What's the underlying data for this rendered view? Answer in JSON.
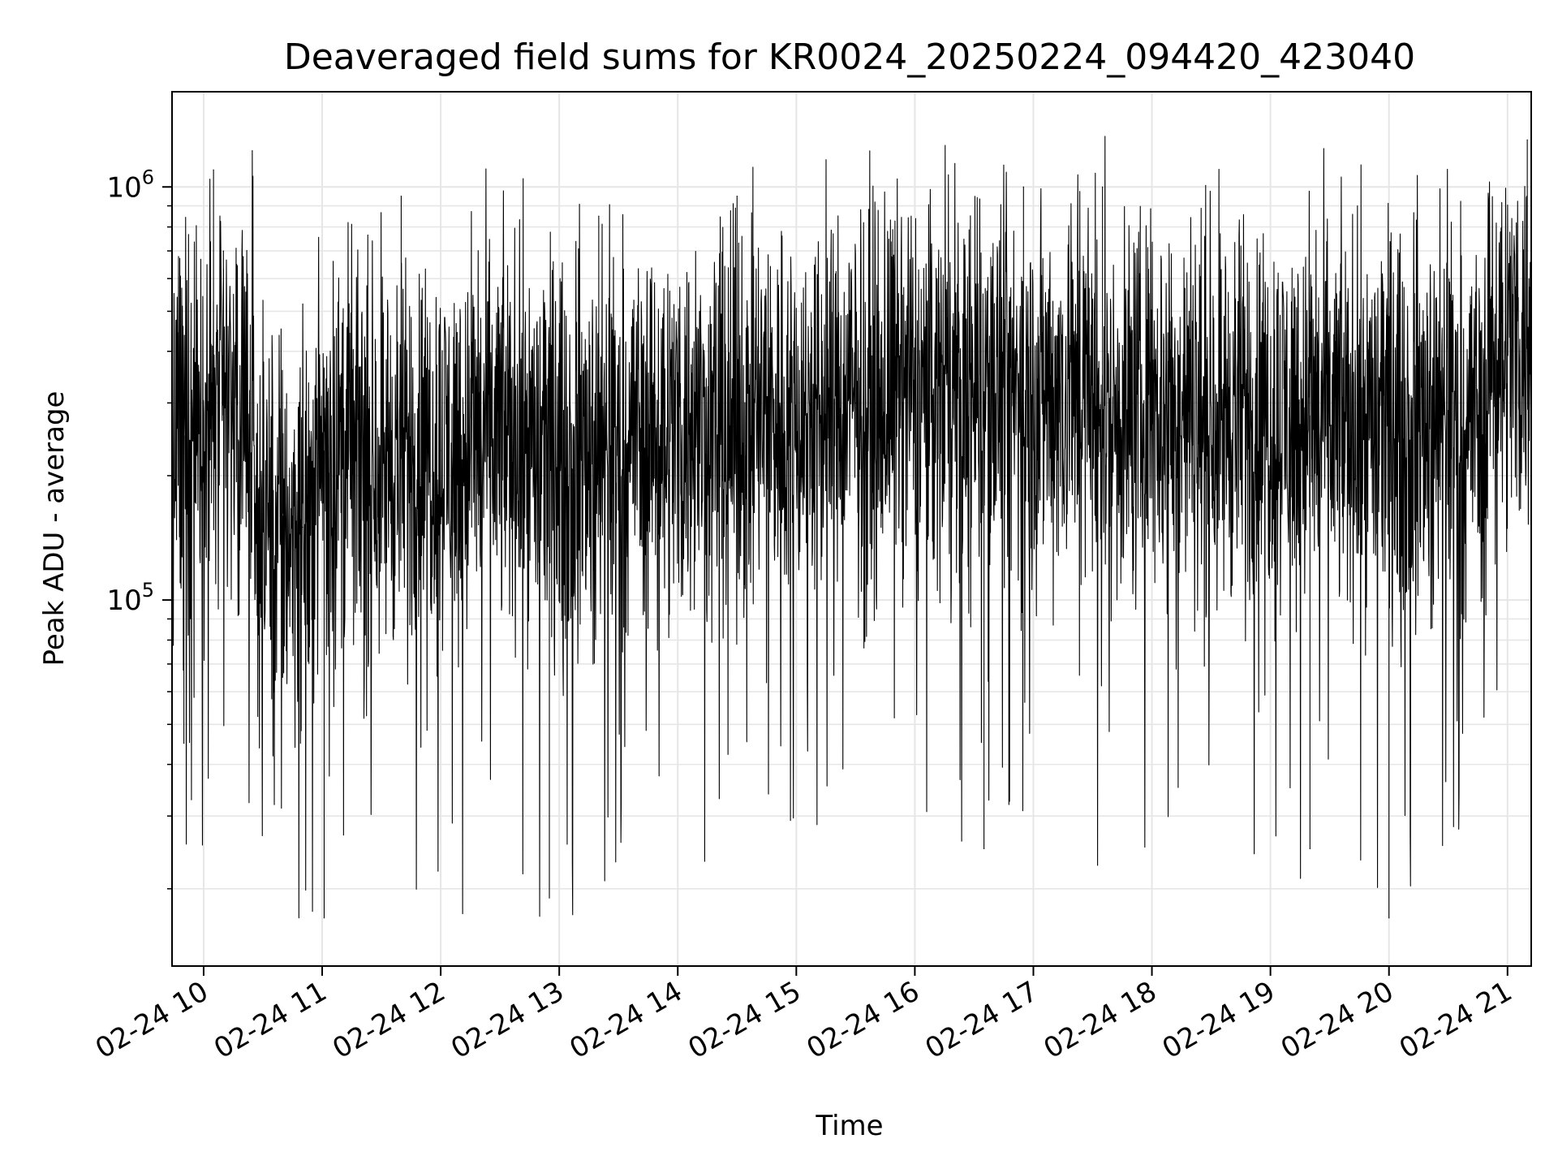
{
  "chart_data": {
    "type": "line",
    "title": "Deaveraged field sums for KR0024_20250224_094420_423040",
    "xlabel": "Time",
    "ylabel": "Peak ADU - average",
    "y_scale": "log",
    "ylim": [
      13000,
      1700000
    ],
    "xlim": [
      "2025-02-24 09:44",
      "2025-02-24 21:12"
    ],
    "x_ticks": [
      "02-24 10",
      "02-24 11",
      "02-24 12",
      "02-24 13",
      "02-24 14",
      "02-24 15",
      "02-24 16",
      "02-24 17",
      "02-24 18",
      "02-24 19",
      "02-24 20",
      "02-24 21"
    ],
    "y_ticks": [
      {
        "base": "10",
        "exp": "5",
        "value": 100000
      },
      {
        "base": "10",
        "exp": "6",
        "value": 1000000
      }
    ],
    "grid": true,
    "line_color": "#000000",
    "grid_color": "#e6e6e6",
    "series": [
      {
        "values": [
          {
            "x": "2025-02-24 09:45",
            "y": 250000
          },
          {
            "x": "2025-02-24 09:50",
            "y": 45000
          },
          {
            "x": "2025-02-24 10:00",
            "y": 280000
          },
          {
            "x": "2025-02-24 10:05",
            "y": 1100000
          },
          {
            "x": "2025-02-24 10:10",
            "y": 700000
          },
          {
            "x": "2025-02-24 10:20",
            "y": 300000
          },
          {
            "x": "2025-02-24 10:30",
            "y": 160000
          },
          {
            "x": "2025-02-24 10:40",
            "y": 65000
          },
          {
            "x": "2025-02-24 10:50",
            "y": 150000
          },
          {
            "x": "2025-02-24 11:00",
            "y": 230000
          },
          {
            "x": "2025-02-24 11:01",
            "y": 17000
          },
          {
            "x": "2025-02-24 11:30",
            "y": 220000
          },
          {
            "x": "2025-02-24 11:40",
            "y": 950000
          },
          {
            "x": "2025-02-24 12:00",
            "y": 230000
          },
          {
            "x": "2025-02-24 12:30",
            "y": 250000
          },
          {
            "x": "2025-02-24 13:00",
            "y": 230000
          },
          {
            "x": "2025-02-24 12:55",
            "y": 19000
          },
          {
            "x": "2025-02-24 13:20",
            "y": 850000
          },
          {
            "x": "2025-02-24 14:00",
            "y": 260000
          },
          {
            "x": "2025-02-24 14:30",
            "y": 950000
          },
          {
            "x": "2025-02-24 15:00",
            "y": 280000
          },
          {
            "x": "2025-02-24 15:30",
            "y": 300000
          },
          {
            "x": "2025-02-24 16:00",
            "y": 320000
          },
          {
            "x": "2025-02-24 16:35",
            "y": 25000
          },
          {
            "x": "2025-02-24 16:55",
            "y": 1000000
          },
          {
            "x": "2025-02-24 17:00",
            "y": 320000
          },
          {
            "x": "2025-02-24 17:35",
            "y": 1000000
          },
          {
            "x": "2025-02-24 18:00",
            "y": 290000
          },
          {
            "x": "2025-02-24 19:00",
            "y": 280000
          },
          {
            "x": "2025-02-24 19:20",
            "y": 25000
          },
          {
            "x": "2025-02-24 20:00",
            "y": 270000
          },
          {
            "x": "2025-02-24 20:00",
            "y": 17000
          },
          {
            "x": "2025-02-24 20:40",
            "y": 280000
          },
          {
            "x": "2025-02-24 21:00",
            "y": 420000
          },
          {
            "x": "2025-02-24 21:10",
            "y": 1300000
          }
        ]
      }
    ]
  }
}
